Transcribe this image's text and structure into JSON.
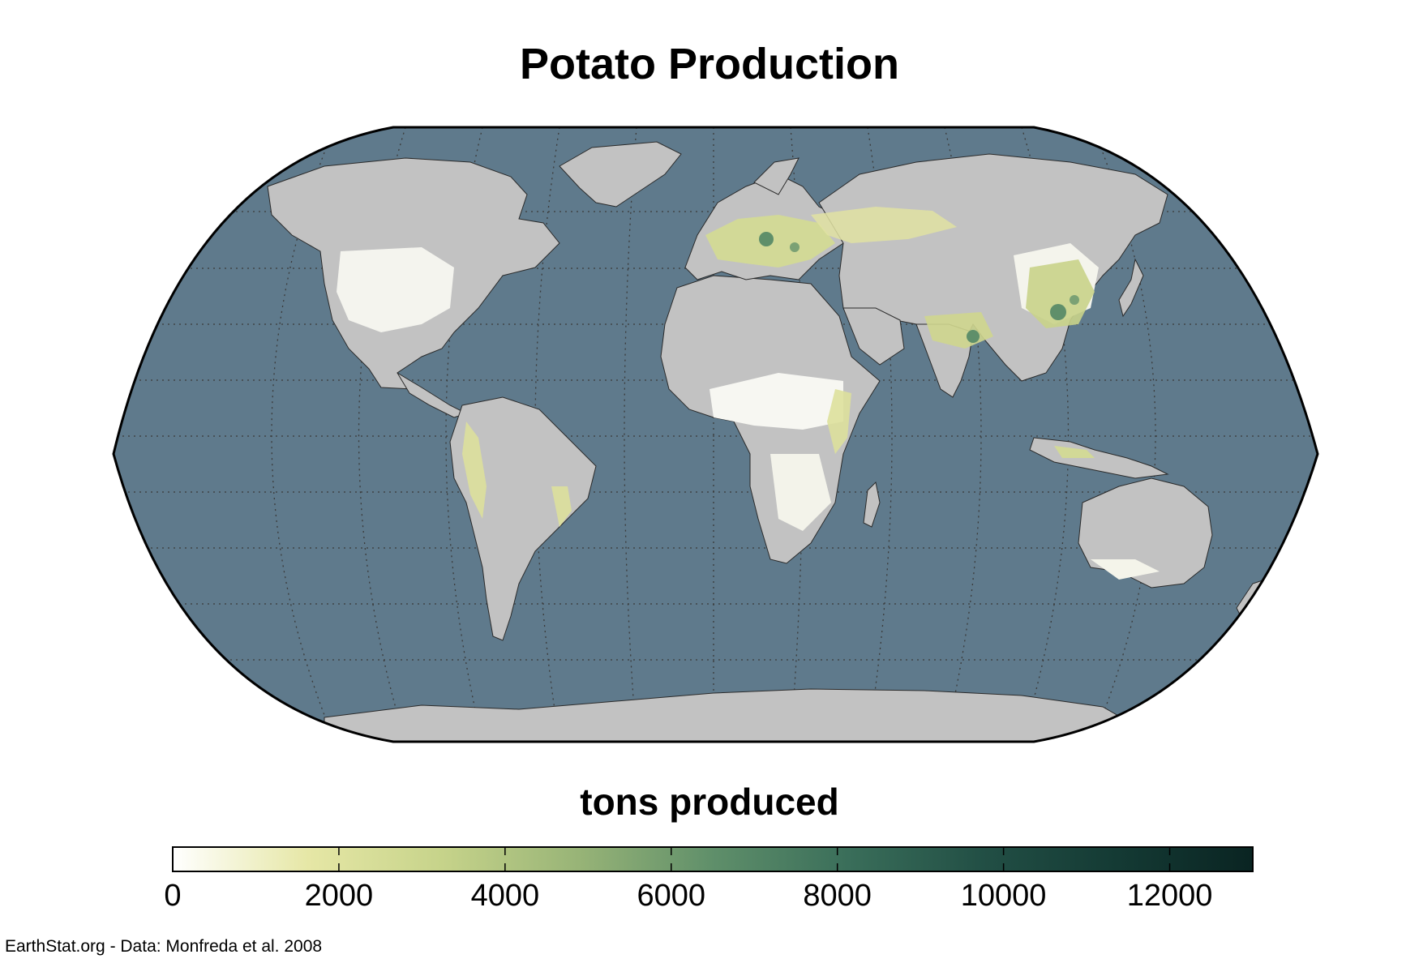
{
  "title": "Potato Production",
  "legend": {
    "title": "tons produced",
    "min": 0,
    "max": 13000,
    "ticks": [
      "0",
      "2000",
      "4000",
      "6000",
      "8000",
      "10000",
      "12000"
    ],
    "tick_values": [
      0,
      2000,
      4000,
      6000,
      8000,
      10000,
      12000
    ],
    "color_stops": [
      "#ffffff",
      "#e6e7a6",
      "#c6d38a",
      "#98b477",
      "#5f8f6a",
      "#3a6e5a",
      "#224f45",
      "#143a34",
      "#0a2422"
    ]
  },
  "colors": {
    "ocean": "#5f7a8c",
    "land_no_data": "#c2c2c2",
    "cropland_zero": "#ffffff",
    "graticule": "#3a3a3a",
    "outline": "#000000"
  },
  "credit": "EarthStat.org - Data: Monfreda et al. 2008"
}
